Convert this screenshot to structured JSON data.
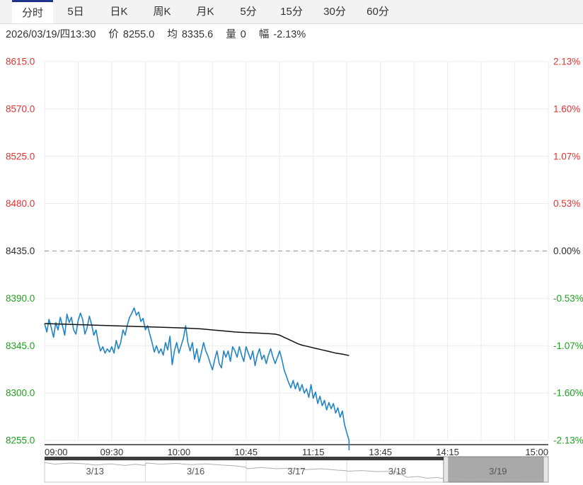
{
  "tabs": {
    "items": [
      {
        "label": "分时",
        "active": true
      },
      {
        "label": "5日",
        "active": false
      },
      {
        "label": "日K",
        "active": false
      },
      {
        "label": "周K",
        "active": false
      },
      {
        "label": "月K",
        "active": false
      },
      {
        "label": "5分",
        "active": false
      },
      {
        "label": "15分",
        "active": false
      },
      {
        "label": "30分",
        "active": false
      },
      {
        "label": "60分",
        "active": false
      }
    ]
  },
  "info": {
    "datetime": "2026/03/19/四13:30",
    "fields": [
      {
        "label": "价",
        "value": "8255.0"
      },
      {
        "label": "均",
        "value": "8335.6"
      },
      {
        "label": "量",
        "value": "0"
      },
      {
        "label": "幅",
        "value": "-2.13%"
      }
    ]
  },
  "colors": {
    "accent_tab_border": "#20348c",
    "up_red": "#e03333",
    "down_green": "#1ea11e",
    "neutral_black": "#2b2b2b",
    "price_line": "#2284c6",
    "avg_line": "#111111",
    "grid": "#ececec",
    "zero_dash": "#999999",
    "axis_line": "#333333",
    "x_label": "#333333",
    "nav_border": "#c8c8c8",
    "nav_divider": "#dddddd",
    "nav_spark": "#b0b0b0",
    "nav_date": "#555555",
    "nav_scroll_dark": "#3c3c3c",
    "nav_sel_fill": "#a9a9a9",
    "nav_sel_border": "#838383",
    "nav_handle_fill": "#e6e6e6",
    "nav_handle_border": "#9a9a9a"
  },
  "chart_data": {
    "type": "line",
    "title": "intraday time-sharing chart (分时)",
    "x_axis": {
      "labels": [
        "09:00",
        "09:30",
        "10:00",
        "10:45",
        "11:15",
        "13:45",
        "14:15",
        "15:00"
      ],
      "label_minutes": [
        0,
        30,
        60,
        90,
        120,
        150,
        180,
        225
      ],
      "total_minutes": 225,
      "gridline_every_minutes": 15
    },
    "y_axis_left": {
      "ticks": [
        "8615.0",
        "8570.0",
        "8525.0",
        "8480.0",
        "8435.0",
        "8390.0",
        "8345.0",
        "8300.0",
        "8255.0"
      ],
      "tick_values": [
        8615.0,
        8570.0,
        8525.0,
        8480.0,
        8435.0,
        8390.0,
        8345.0,
        8300.0,
        8255.0
      ],
      "baseline_value": 8435.0
    },
    "y_axis_right": {
      "ticks": [
        "2.13%",
        "1.60%",
        "1.07%",
        "0.53%",
        "0.00%",
        "-0.53%",
        "-1.07%",
        "-1.60%",
        "-2.13%"
      ]
    },
    "series": [
      {
        "name": "price",
        "color_key": "price_line",
        "points": [
          [
            0,
            8366
          ],
          [
            1,
            8358
          ],
          [
            2,
            8370
          ],
          [
            3,
            8362
          ],
          [
            4,
            8353
          ],
          [
            5,
            8367
          ],
          [
            6,
            8360
          ],
          [
            7,
            8372
          ],
          [
            8,
            8364
          ],
          [
            9,
            8355
          ],
          [
            10,
            8375
          ],
          [
            11,
            8367
          ],
          [
            12,
            8372
          ],
          [
            13,
            8360
          ],
          [
            14,
            8356
          ],
          [
            15,
            8369
          ],
          [
            16,
            8376
          ],
          [
            17,
            8370
          ],
          [
            18,
            8356
          ],
          [
            19,
            8362
          ],
          [
            20,
            8373
          ],
          [
            21,
            8365
          ],
          [
            22,
            8355
          ],
          [
            23,
            8360
          ],
          [
            24,
            8348
          ],
          [
            25,
            8340
          ],
          [
            26,
            8344
          ],
          [
            27,
            8338
          ],
          [
            28,
            8342
          ],
          [
            29,
            8339
          ],
          [
            30,
            8344
          ],
          [
            31,
            8338
          ],
          [
            32,
            8350
          ],
          [
            33,
            8342
          ],
          [
            34,
            8348
          ],
          [
            35,
            8360
          ],
          [
            36,
            8355
          ],
          [
            37,
            8365
          ],
          [
            38,
            8372
          ],
          [
            39,
            8376
          ],
          [
            40,
            8381
          ],
          [
            41,
            8374
          ],
          [
            42,
            8377
          ],
          [
            43,
            8368
          ],
          [
            44,
            8371
          ],
          [
            45,
            8360
          ],
          [
            46,
            8364
          ],
          [
            47,
            8356
          ],
          [
            48,
            8348
          ],
          [
            49,
            8339
          ],
          [
            50,
            8345
          ],
          [
            51,
            8338
          ],
          [
            52,
            8342
          ],
          [
            53,
            8336
          ],
          [
            54,
            8348
          ],
          [
            55,
            8341
          ],
          [
            56,
            8354
          ],
          [
            57,
            8327
          ],
          [
            58,
            8340
          ],
          [
            59,
            8348
          ],
          [
            60,
            8338
          ],
          [
            61,
            8345
          ],
          [
            62,
            8352
          ],
          [
            63,
            8364
          ],
          [
            64,
            8348
          ],
          [
            65,
            8340
          ],
          [
            66,
            8348
          ],
          [
            67,
            8332
          ],
          [
            68,
            8342
          ],
          [
            69,
            8329
          ],
          [
            70,
            8338
          ],
          [
            71,
            8348
          ],
          [
            72,
            8340
          ],
          [
            73,
            8335
          ],
          [
            74,
            8328
          ],
          [
            75,
            8322
          ],
          [
            76,
            8332
          ],
          [
            77,
            8340
          ],
          [
            78,
            8328
          ],
          [
            79,
            8324
          ],
          [
            80,
            8340
          ],
          [
            81,
            8334
          ],
          [
            82,
            8340
          ],
          [
            83,
            8330
          ],
          [
            84,
            8344
          ],
          [
            85,
            8340
          ],
          [
            86,
            8334
          ],
          [
            87,
            8344
          ],
          [
            88,
            8336
          ],
          [
            89,
            8330
          ],
          [
            90,
            8344
          ],
          [
            91,
            8338
          ],
          [
            92,
            8332
          ],
          [
            93,
            8340
          ],
          [
            94,
            8326
          ],
          [
            95,
            8336
          ],
          [
            96,
            8342
          ],
          [
            97,
            8332
          ],
          [
            98,
            8336
          ],
          [
            99,
            8328
          ],
          [
            100,
            8336
          ],
          [
            101,
            8342
          ],
          [
            102,
            8334
          ],
          [
            103,
            8328
          ],
          [
            104,
            8334
          ],
          [
            105,
            8340
          ],
          [
            106,
            8332
          ],
          [
            107,
            8322
          ],
          [
            108,
            8316
          ],
          [
            109,
            8310
          ],
          [
            110,
            8305
          ],
          [
            111,
            8312
          ],
          [
            112,
            8304
          ],
          [
            113,
            8310
          ],
          [
            114,
            8302
          ],
          [
            115,
            8308
          ],
          [
            116,
            8300
          ],
          [
            117,
            8304
          ],
          [
            118,
            8296
          ],
          [
            119,
            8308
          ],
          [
            120,
            8295
          ],
          [
            121,
            8301
          ],
          [
            122,
            8290
          ],
          [
            123,
            8297
          ],
          [
            124,
            8288
          ],
          [
            125,
            8293
          ],
          [
            126,
            8284
          ],
          [
            127,
            8291
          ],
          [
            128,
            8285
          ],
          [
            129,
            8290
          ],
          [
            130,
            8281
          ],
          [
            131,
            8286
          ],
          [
            132,
            8277
          ],
          [
            133,
            8283
          ],
          [
            134,
            8270
          ],
          [
            135,
            8262
          ],
          [
            136,
            8255
          ]
        ]
      },
      {
        "name": "average",
        "color_key": "avg_line",
        "points": [
          [
            0,
            8366
          ],
          [
            15,
            8365
          ],
          [
            30,
            8364
          ],
          [
            45,
            8363
          ],
          [
            60,
            8362
          ],
          [
            70,
            8361
          ],
          [
            75,
            8360
          ],
          [
            80,
            8359
          ],
          [
            85,
            8358
          ],
          [
            90,
            8357.5
          ],
          [
            95,
            8357
          ],
          [
            100,
            8356.5
          ],
          [
            103,
            8356
          ],
          [
            105,
            8355
          ],
          [
            107,
            8353
          ],
          [
            109,
            8351
          ],
          [
            111,
            8349
          ],
          [
            113,
            8347
          ],
          [
            115,
            8345.5
          ],
          [
            118,
            8344
          ],
          [
            121,
            8342.5
          ],
          [
            124,
            8341
          ],
          [
            127,
            8339.5
          ],
          [
            130,
            8338
          ],
          [
            133,
            8337
          ],
          [
            136,
            8335.6
          ]
        ]
      }
    ],
    "last_point": {
      "time": "13:30",
      "price": 8255.0,
      "avg": 8335.6,
      "change_pct": "-2.13%"
    },
    "navigator": {
      "dates": [
        "3/13",
        "3/16",
        "3/17",
        "3/18",
        "3/19"
      ],
      "selected_date": "3/19",
      "selection_start_frac": 0.792,
      "selection_end_frac": 1.0,
      "sparkline": [
        [
          0,
          0.08
        ],
        [
          0.02,
          0.16
        ],
        [
          0.05,
          0.1
        ],
        [
          0.08,
          0.14
        ],
        [
          0.1,
          0.2
        ],
        [
          0.13,
          0.14
        ],
        [
          0.16,
          0.22
        ],
        [
          0.18,
          0.16
        ],
        [
          0.199,
          0.22
        ],
        [
          0.202,
          0.1
        ],
        [
          0.23,
          0.16
        ],
        [
          0.26,
          0.12
        ],
        [
          0.29,
          0.18
        ],
        [
          0.32,
          0.14
        ],
        [
          0.35,
          0.2
        ],
        [
          0.38,
          0.24
        ],
        [
          0.399,
          0.3
        ],
        [
          0.402,
          0.38
        ],
        [
          0.43,
          0.32
        ],
        [
          0.46,
          0.38
        ],
        [
          0.49,
          0.35
        ],
        [
          0.52,
          0.42
        ],
        [
          0.55,
          0.38
        ],
        [
          0.58,
          0.45
        ],
        [
          0.599,
          0.48
        ],
        [
          0.602,
          0.5
        ],
        [
          0.63,
          0.47
        ],
        [
          0.66,
          0.52
        ],
        [
          0.69,
          0.5
        ],
        [
          0.7,
          0.55
        ],
        [
          0.71,
          0.68
        ],
        [
          0.72,
          0.8
        ],
        [
          0.74,
          0.76
        ],
        [
          0.76,
          0.84
        ],
        [
          0.78,
          0.8
        ],
        [
          0.795,
          0.88
        ],
        [
          0.81,
          0.86
        ],
        [
          0.84,
          0.92
        ],
        [
          0.87,
          0.88
        ],
        [
          0.9,
          0.94
        ],
        [
          0.93,
          0.9
        ],
        [
          0.96,
          0.95
        ],
        [
          1.0,
          0.93
        ]
      ]
    }
  }
}
